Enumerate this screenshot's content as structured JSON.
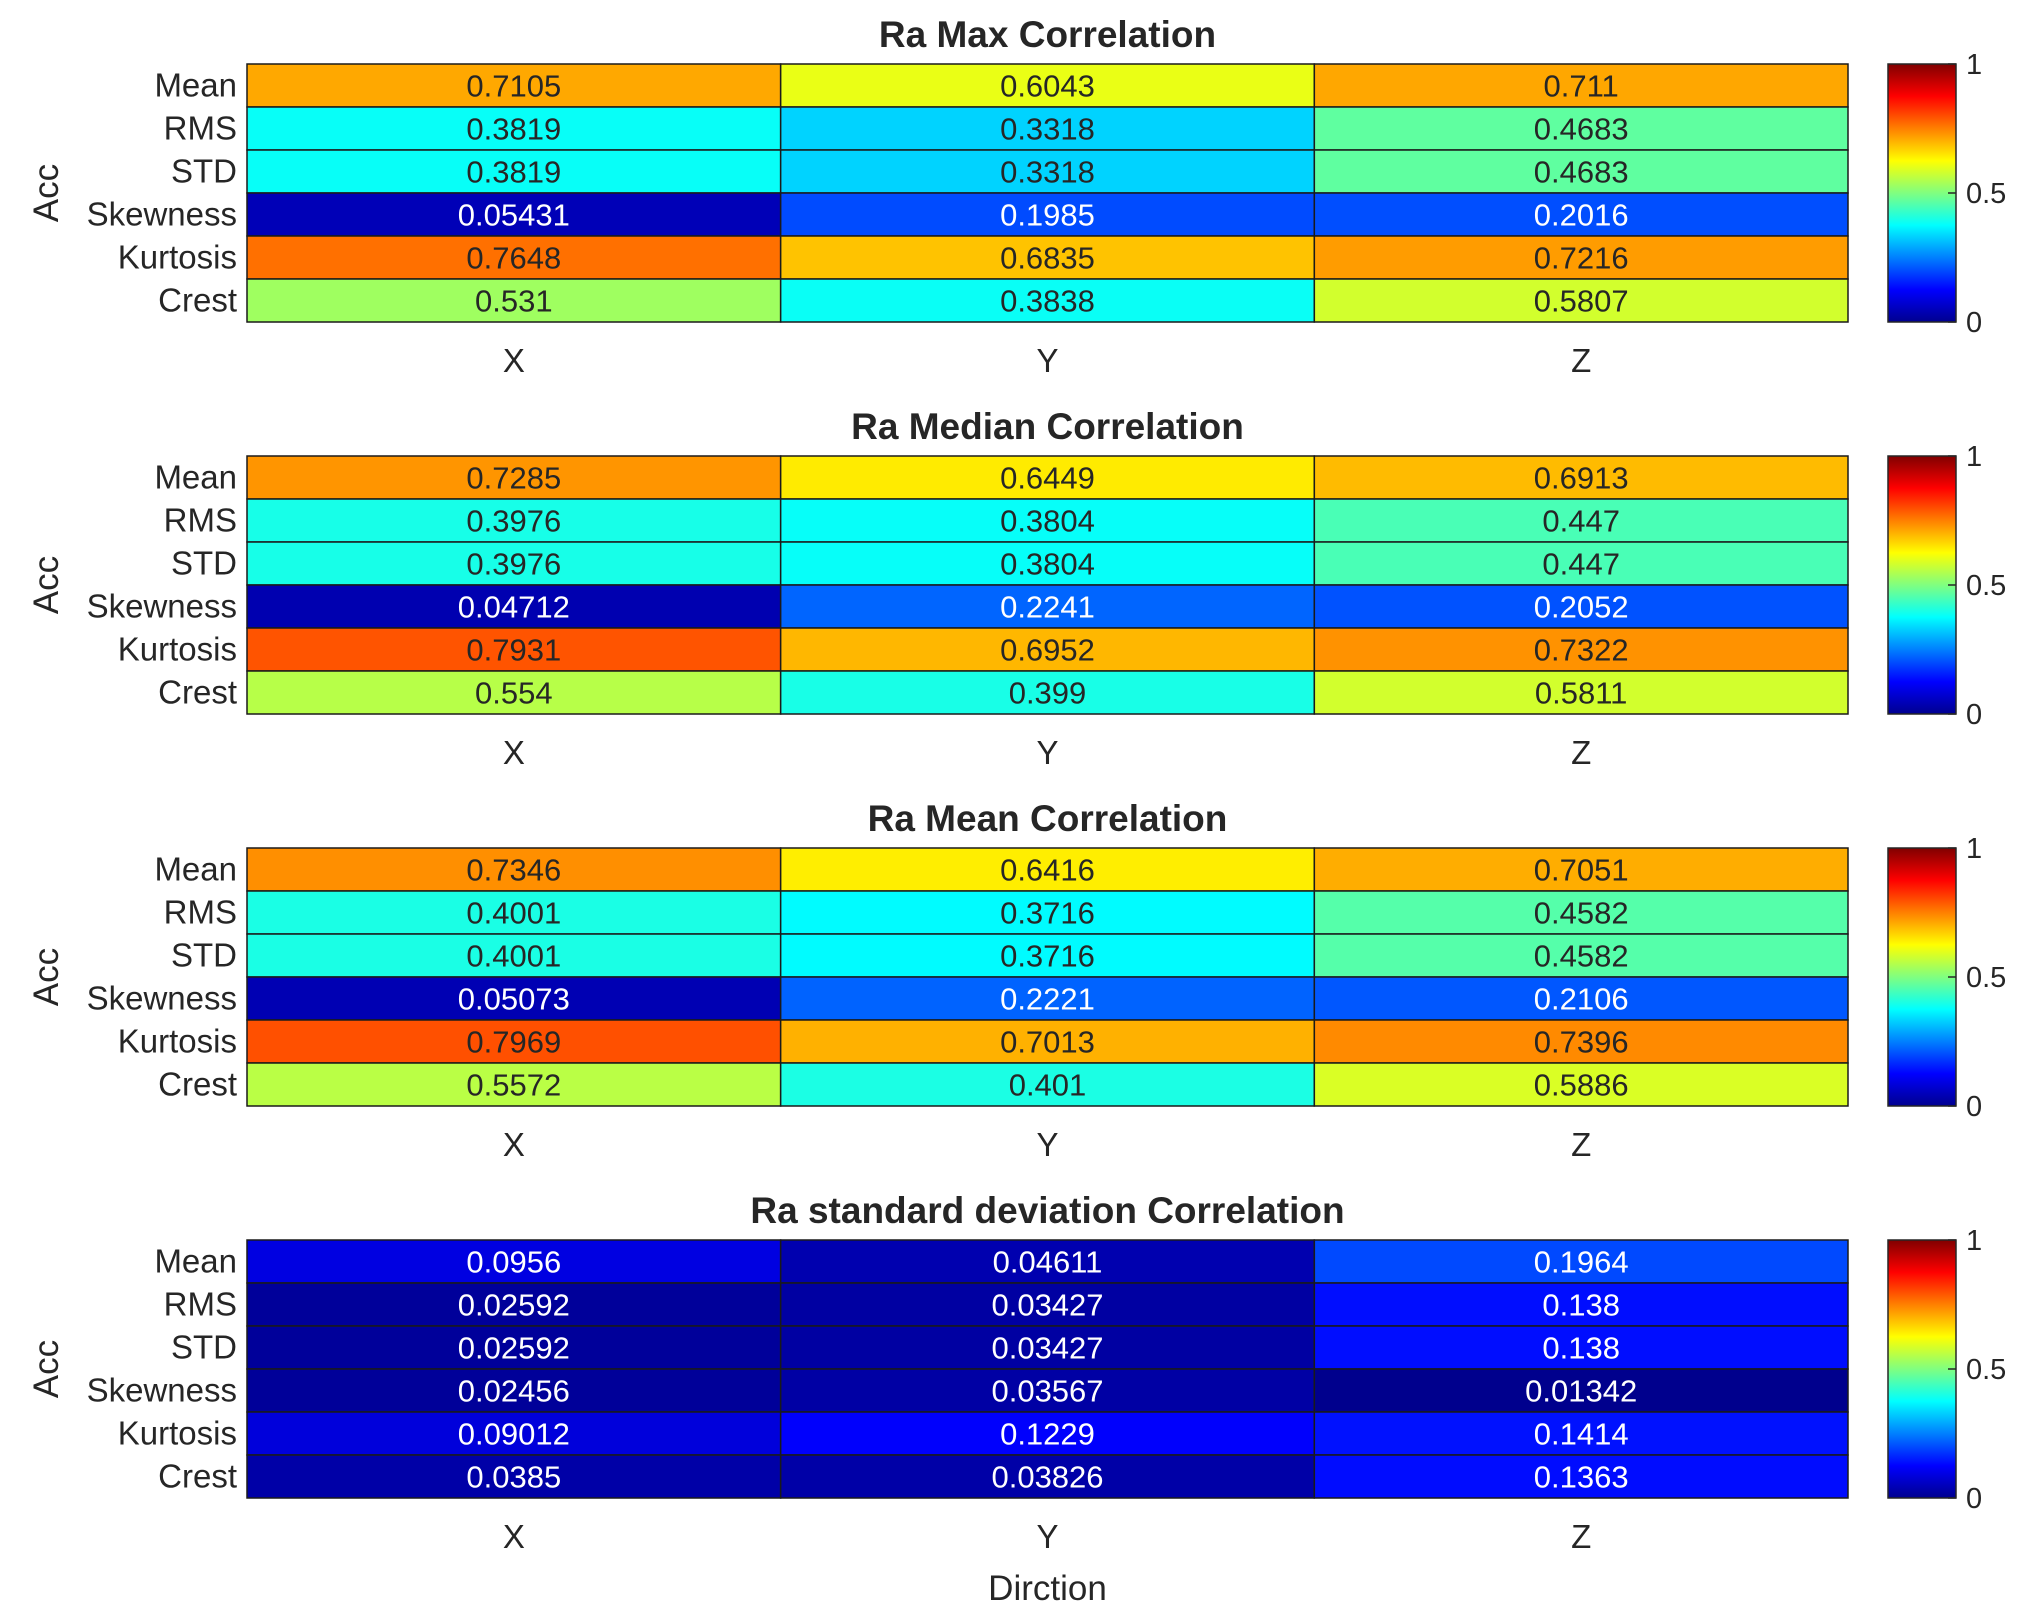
{
  "chart_data": [
    {
      "type": "heatmap",
      "title": "Ra Max Correlation",
      "ylabel": "Acc",
      "xlabel": "",
      "x_categories": [
        "X",
        "Y",
        "Z"
      ],
      "y_categories": [
        "Mean",
        "RMS",
        "STD",
        "Skewness",
        "Kurtosis",
        "Crest"
      ],
      "values": [
        [
          "0.7105",
          "0.6043",
          "0.711"
        ],
        [
          "0.3819",
          "0.3318",
          "0.4683"
        ],
        [
          "0.3819",
          "0.3318",
          "0.4683"
        ],
        [
          "0.05431",
          "0.1985",
          "0.2016"
        ],
        [
          "0.7648",
          "0.6835",
          "0.7216"
        ],
        [
          "0.531",
          "0.3838",
          "0.5807"
        ]
      ],
      "colorbar": {
        "colormap": "jet",
        "limits": [
          0,
          1
        ],
        "ticks": [
          "0",
          "0.5",
          "1"
        ]
      }
    },
    {
      "type": "heatmap",
      "title": "Ra Median Correlation",
      "ylabel": "Acc",
      "xlabel": "",
      "x_categories": [
        "X",
        "Y",
        "Z"
      ],
      "y_categories": [
        "Mean",
        "RMS",
        "STD",
        "Skewness",
        "Kurtosis",
        "Crest"
      ],
      "values": [
        [
          "0.7285",
          "0.6449",
          "0.6913"
        ],
        [
          "0.3976",
          "0.3804",
          "0.447"
        ],
        [
          "0.3976",
          "0.3804",
          "0.447"
        ],
        [
          "0.04712",
          "0.2241",
          "0.2052"
        ],
        [
          "0.7931",
          "0.6952",
          "0.7322"
        ],
        [
          "0.554",
          "0.399",
          "0.5811"
        ]
      ],
      "colorbar": {
        "colormap": "jet",
        "limits": [
          0,
          1
        ],
        "ticks": [
          "0",
          "0.5",
          "1"
        ]
      }
    },
    {
      "type": "heatmap",
      "title": "Ra Mean Correlation",
      "ylabel": "Acc",
      "xlabel": "",
      "x_categories": [
        "X",
        "Y",
        "Z"
      ],
      "y_categories": [
        "Mean",
        "RMS",
        "STD",
        "Skewness",
        "Kurtosis",
        "Crest"
      ],
      "values": [
        [
          "0.7346",
          "0.6416",
          "0.7051"
        ],
        [
          "0.4001",
          "0.3716",
          "0.4582"
        ],
        [
          "0.4001",
          "0.3716",
          "0.4582"
        ],
        [
          "0.05073",
          "0.2221",
          "0.2106"
        ],
        [
          "0.7969",
          "0.7013",
          "0.7396"
        ],
        [
          "0.5572",
          "0.401",
          "0.5886"
        ]
      ],
      "colorbar": {
        "colormap": "jet",
        "limits": [
          0,
          1
        ],
        "ticks": [
          "0",
          "0.5",
          "1"
        ]
      }
    },
    {
      "type": "heatmap",
      "title": "Ra standard deviation Correlation",
      "ylabel": "Acc",
      "xlabel": "Dirction",
      "x_categories": [
        "X",
        "Y",
        "Z"
      ],
      "y_categories": [
        "Mean",
        "RMS",
        "STD",
        "Skewness",
        "Kurtosis",
        "Crest"
      ],
      "values": [
        [
          "0.0956",
          "0.04611",
          "0.1964"
        ],
        [
          "0.02592",
          "0.03427",
          "0.138"
        ],
        [
          "0.02592",
          "0.03427",
          "0.138"
        ],
        [
          "0.02456",
          "0.03567",
          "0.01342"
        ],
        [
          "0.09012",
          "0.1229",
          "0.1414"
        ],
        [
          "0.0385",
          "0.03826",
          "0.1363"
        ]
      ],
      "colorbar": {
        "colormap": "jet",
        "limits": [
          0,
          1
        ],
        "ticks": [
          "0",
          "0.5",
          "1"
        ]
      }
    }
  ]
}
